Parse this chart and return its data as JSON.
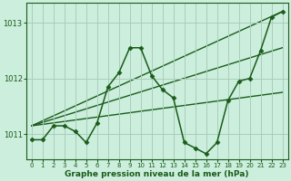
{
  "bg_color": "#cceedd",
  "grid_color": "#aaccbb",
  "line_color": "#1a5c1a",
  "xlabel": "Graphe pression niveau de la mer (hPa)",
  "xlim": [
    -0.5,
    23.5
  ],
  "ylim": [
    1010.55,
    1013.35
  ],
  "yticks": [
    1011,
    1012,
    1013
  ],
  "xticks": [
    0,
    1,
    2,
    3,
    4,
    5,
    6,
    7,
    8,
    9,
    10,
    11,
    12,
    13,
    14,
    15,
    16,
    17,
    18,
    19,
    20,
    21,
    22,
    23
  ],
  "main_x": [
    0,
    1,
    2,
    3,
    4,
    5,
    6,
    7,
    8,
    9,
    10,
    11,
    12,
    13,
    14,
    15,
    16,
    17,
    18,
    19,
    20,
    21,
    22,
    23
  ],
  "main_y": [
    1010.9,
    1010.9,
    1011.15,
    1011.15,
    1011.05,
    1010.85,
    1011.2,
    1011.85,
    1012.1,
    1012.55,
    1012.55,
    1012.05,
    1011.8,
    1011.65,
    1010.85,
    1010.75,
    1010.65,
    1010.85,
    1011.6,
    1011.95,
    1012.0,
    1012.5,
    1013.1,
    1013.2
  ],
  "trend1_x": [
    0,
    23
  ],
  "trend1_y": [
    1011.15,
    1013.2
  ],
  "trend2_x": [
    0,
    23
  ],
  "trend2_y": [
    1011.15,
    1011.75
  ],
  "trend3_x": [
    0,
    23
  ],
  "trend3_y": [
    1011.15,
    1012.55
  ]
}
